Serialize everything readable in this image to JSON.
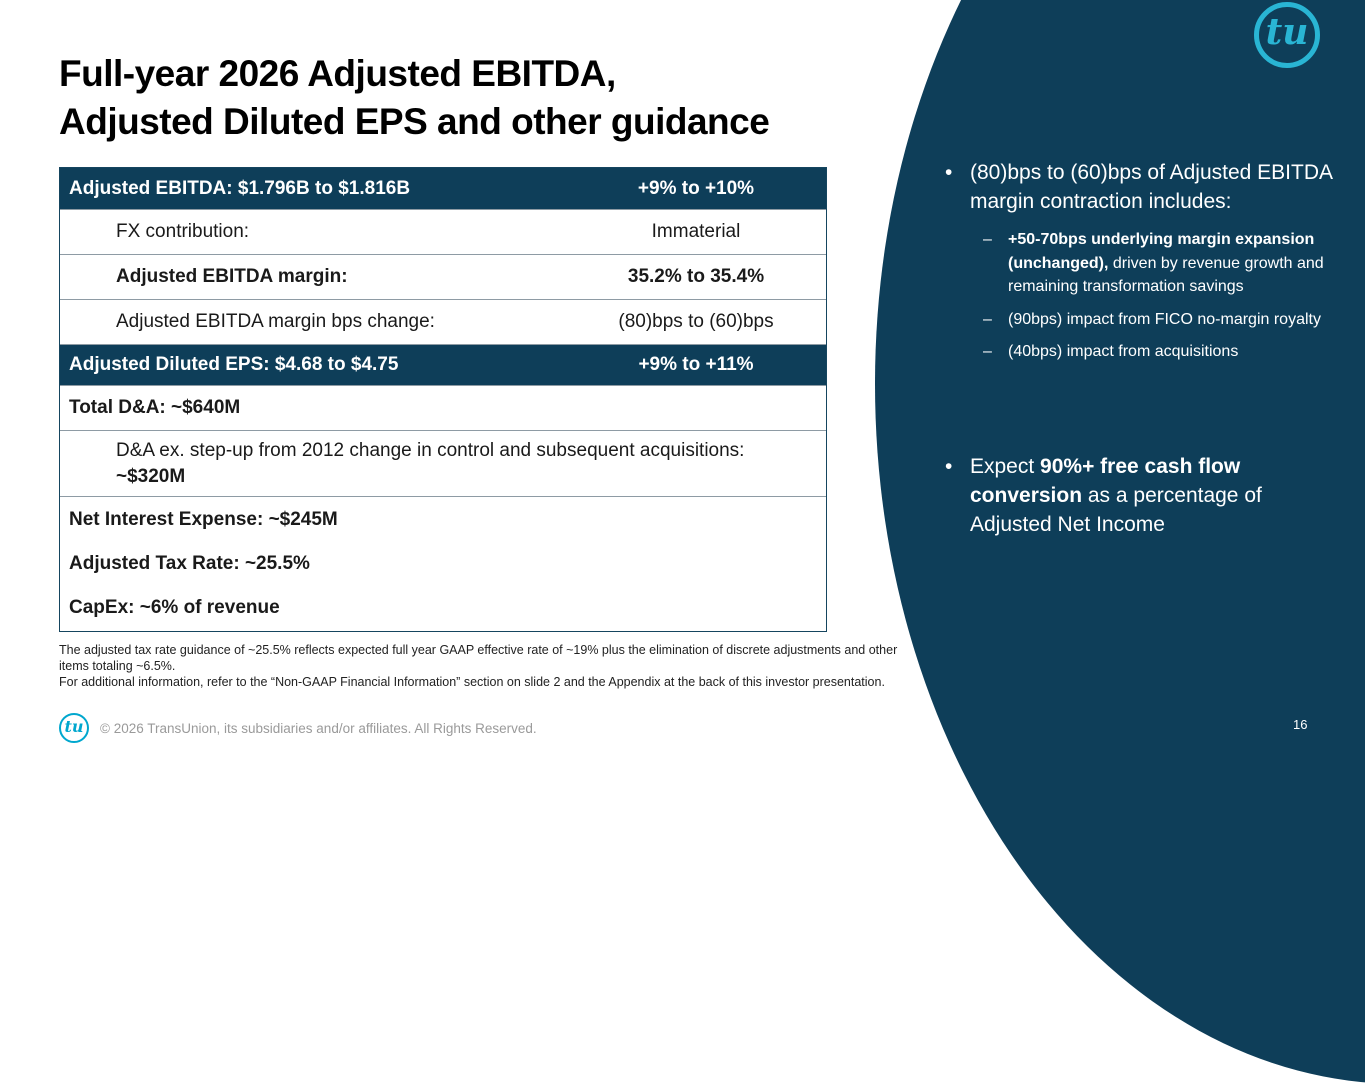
{
  "brand": {
    "logo_text": "tu",
    "accent_color": "#00A7CE",
    "navy_color": "#0E3E59"
  },
  "title": {
    "line1": "Full-year 2026 Adjusted EBITDA,",
    "line2": "Adjusted Diluted EPS and other guidance"
  },
  "table": {
    "rows": [
      {
        "label": "Adjusted EBITDA: $1.796B to $1.816B",
        "value": "+9% to +10%"
      },
      {
        "label": "FX contribution:",
        "value": "Immaterial"
      },
      {
        "label": "Adjusted EBITDA margin:",
        "value": "35.2% to 35.4%"
      },
      {
        "label": "Adjusted EBITDA margin bps change:",
        "value": "(80)bps to (60)bps"
      },
      {
        "label": "Adjusted Diluted EPS: $4.68 to $4.75",
        "value": "+9% to +11%"
      },
      {
        "label": "Total D&A: ~$640M"
      },
      {
        "label_normal": "D&A ex. step-up from 2012 change in control and subsequent acquisitions: ",
        "label_bold": "~$320M"
      },
      {
        "lines": [
          "Net Interest Expense: ~$245M",
          "Adjusted Tax Rate: ~25.5%",
          "CapEx: ~6% of revenue"
        ]
      }
    ]
  },
  "footnotes": {
    "line1": "The adjusted tax rate guidance of ~25.5% reflects expected full year GAAP effective rate of ~19% plus the elimination of discrete adjustments and other items totaling ~6.5%.",
    "line2": "For additional information, refer to the “Non-GAAP Financial Information” section on slide 2 and the Appendix at the back of this investor presentation."
  },
  "footer": {
    "copyright": "© 2026 TransUnion, its subsidiaries and/or affiliates. All Rights Reserved."
  },
  "sidebar": {
    "bullet1": {
      "marker": "•",
      "text": "(80)bps to (60)bps of Adjusted EBITDA margin contraction includes:",
      "sub_bullets": [
        {
          "marker": "–",
          "bold": "+50-70bps underlying margin expansion (unchanged),",
          "normal": " driven by revenue growth and remaining transformation savings"
        },
        {
          "marker": "–",
          "bold": "",
          "normal": "(90bps) impact from FICO no-margin royalty"
        },
        {
          "marker": "–",
          "bold": "",
          "normal": "(40bps) impact from acquisitions"
        }
      ]
    },
    "bullet2": {
      "marker": "•",
      "prefix": "Expect ",
      "bold": "90%+ free cash flow conversion",
      "suffix": " as a percentage of Adjusted Net Income"
    },
    "page_number": "16"
  }
}
